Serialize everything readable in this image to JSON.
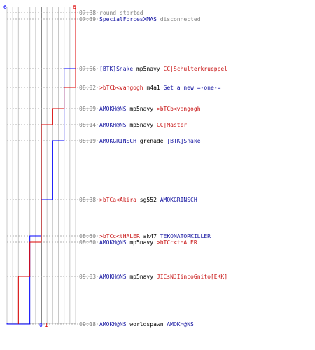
{
  "graph": {
    "scale_min": 0,
    "scale_max": 6,
    "top_label_blue": "6",
    "top_label_red": "6",
    "bottom_label_blue": "0",
    "bottom_label_red": "1",
    "blue_color": "#0000ff",
    "red_color": "#dd0000",
    "grid_color": "#c8c8c8",
    "center_line_color": "#606060"
  },
  "events": [
    {
      "time": "07:38",
      "text": "round started",
      "kind": "system",
      "blue_score": 6,
      "red_score": 6
    },
    {
      "time": "07:39",
      "text": "",
      "player": "SpecialForcesXMAS",
      "action": "disconnected",
      "kind": "disconnect",
      "blue_score": 6,
      "red_score": 6
    },
    {
      "time": "07:56",
      "killer": "[BTK]Snake",
      "weapon": "mp5navy",
      "victim": "CC|Schulterkrueppel",
      "killer_team": "blue",
      "victim_team": "red",
      "blue_score": 5,
      "red_score": 6
    },
    {
      "time": "08:02",
      "killer": ">bTCb<vangogh",
      "weapon": "m4a1",
      "victim": "Get a new =-one-=",
      "killer_team": "red",
      "victim_team": "blue",
      "blue_score": 5,
      "red_score": 5
    },
    {
      "time": "08:09",
      "killer": "AMOKH@NS",
      "weapon": "mp5navy",
      "victim": ">bTCb<vangogh",
      "killer_team": "blue",
      "victim_team": "red",
      "blue_score": 5,
      "red_score": 4
    },
    {
      "time": "08:14",
      "killer": "AMOKH@NS",
      "weapon": "mp5navy",
      "victim": "CC|Master",
      "killer_team": "blue",
      "victim_team": "red",
      "blue_score": 5,
      "red_score": 3
    },
    {
      "time": "08:19",
      "killer": "AMOKGRINSCH",
      "weapon": "grenade",
      "victim": "[BTK]Snake",
      "killer_team": "blue",
      "victim_team": "blue",
      "blue_score": 4,
      "red_score": 3
    },
    {
      "time": "08:38",
      "killer": ">bTCa<Akira",
      "weapon": "sg552",
      "victim": "AMOKGRINSCH",
      "killer_team": "red",
      "victim_team": "blue",
      "blue_score": 3,
      "red_score": 3
    },
    {
      "time": "08:50",
      "killer": ">bTCc<tHALER",
      "weapon": "ak47",
      "victim": "TEKONATORKILLER",
      "killer_team": "red",
      "victim_team": "blue",
      "blue_score": 2,
      "red_score": 3
    },
    {
      "time": "08:50",
      "killer": "AMOKH@NS",
      "weapon": "mp5navy",
      "victim": ">bTCc<tHALER",
      "killer_team": "blue",
      "victim_team": "red",
      "blue_score": 2,
      "red_score": 2
    },
    {
      "time": "09:03",
      "killer": "AMOKH@NS",
      "weapon": "mp5navy",
      "victim": "JICsNJIincoGnito[EKK]",
      "killer_team": "blue",
      "victim_team": "red",
      "blue_score": 2,
      "red_score": 1
    },
    {
      "time": "09:18",
      "killer": "AMOKH@NS",
      "weapon": "worldspawn",
      "victim": "AMOKH@NS",
      "killer_team": "blue",
      "victim_team": "blue",
      "blue_score": 0,
      "red_score": 1
    }
  ]
}
